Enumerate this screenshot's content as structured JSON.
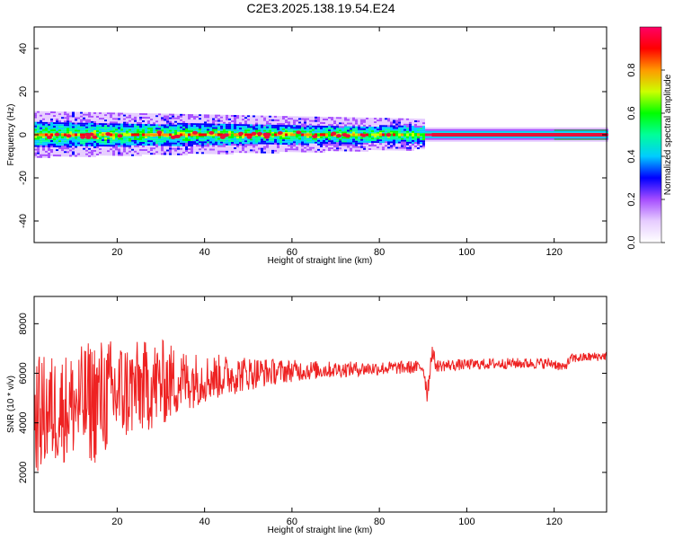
{
  "title": "C2E3.2025.138.19.54.E24",
  "chart_data": [
    {
      "type": "heatmap",
      "xlabel": "Height of straight line (km)",
      "ylabel": "Frequency (Hz)",
      "xlim": [
        1,
        132
      ],
      "ylim": [
        -50,
        50
      ],
      "xticks": [
        20,
        40,
        60,
        80,
        100,
        120
      ],
      "yticks": [
        -40,
        -20,
        0,
        20,
        40
      ],
      "colorbar": {
        "label": "Normalized spectral amplitude",
        "range": [
          0,
          1
        ],
        "ticks": [
          "0.0",
          "0.2",
          "0.4",
          "0.6",
          "0.8"
        ],
        "colors": [
          "#ffffff",
          "#e6ccff",
          "#a64dff",
          "#0000ff",
          "#00ccff",
          "#00ff99",
          "#00ff00",
          "#ccff00",
          "#ff9900",
          "#ff0000",
          "#ff0066"
        ]
      },
      "band": {
        "center_hz": 0,
        "strong_halfwidth_hz": 3,
        "faint_halfwidth_hz": 7,
        "peak_color": "#e8103a"
      },
      "grid": false
    },
    {
      "type": "line",
      "xlabel": "Height of straight line (km)",
      "ylabel": "SNR (10 * v/v)",
      "xlim": [
        1,
        132
      ],
      "ylim": [
        400,
        9100
      ],
      "xticks": [
        20,
        40,
        60,
        80,
        100,
        120
      ],
      "yticks": [
        2000,
        4000,
        6000,
        8000
      ],
      "color": "#ee2222",
      "envelope": [
        {
          "x": 1,
          "mean": 4300,
          "amp": 2400
        },
        {
          "x": 5,
          "mean": 4500,
          "amp": 2300
        },
        {
          "x": 10,
          "mean": 4700,
          "amp": 2200
        },
        {
          "x": 15,
          "mean": 4900,
          "amp": 2600
        },
        {
          "x": 20,
          "mean": 5200,
          "amp": 2200
        },
        {
          "x": 25,
          "mean": 5400,
          "amp": 1900
        },
        {
          "x": 30,
          "mean": 5600,
          "amp": 1800
        },
        {
          "x": 35,
          "mean": 5700,
          "amp": 1300
        },
        {
          "x": 40,
          "mean": 5800,
          "amp": 1000
        },
        {
          "x": 45,
          "mean": 5900,
          "amp": 850
        },
        {
          "x": 50,
          "mean": 6000,
          "amp": 700
        },
        {
          "x": 55,
          "mean": 6050,
          "amp": 550
        },
        {
          "x": 60,
          "mean": 6100,
          "amp": 450
        },
        {
          "x": 70,
          "mean": 6150,
          "amp": 320
        },
        {
          "x": 80,
          "mean": 6200,
          "amp": 280
        },
        {
          "x": 90,
          "mean": 6250,
          "amp": 260
        },
        {
          "x": 91,
          "mean": 5200,
          "amp": 500
        },
        {
          "x": 92,
          "mean": 6900,
          "amp": 400
        },
        {
          "x": 93,
          "mean": 6300,
          "amp": 250
        },
        {
          "x": 100,
          "mean": 6350,
          "amp": 220
        },
        {
          "x": 110,
          "mean": 6400,
          "amp": 220
        },
        {
          "x": 120,
          "mean": 6400,
          "amp": 220
        },
        {
          "x": 122,
          "mean": 6200,
          "amp": 200
        },
        {
          "x": 124,
          "mean": 6600,
          "amp": 200
        },
        {
          "x": 132,
          "mean": 6700,
          "amp": 180
        }
      ],
      "grid": false
    }
  ]
}
